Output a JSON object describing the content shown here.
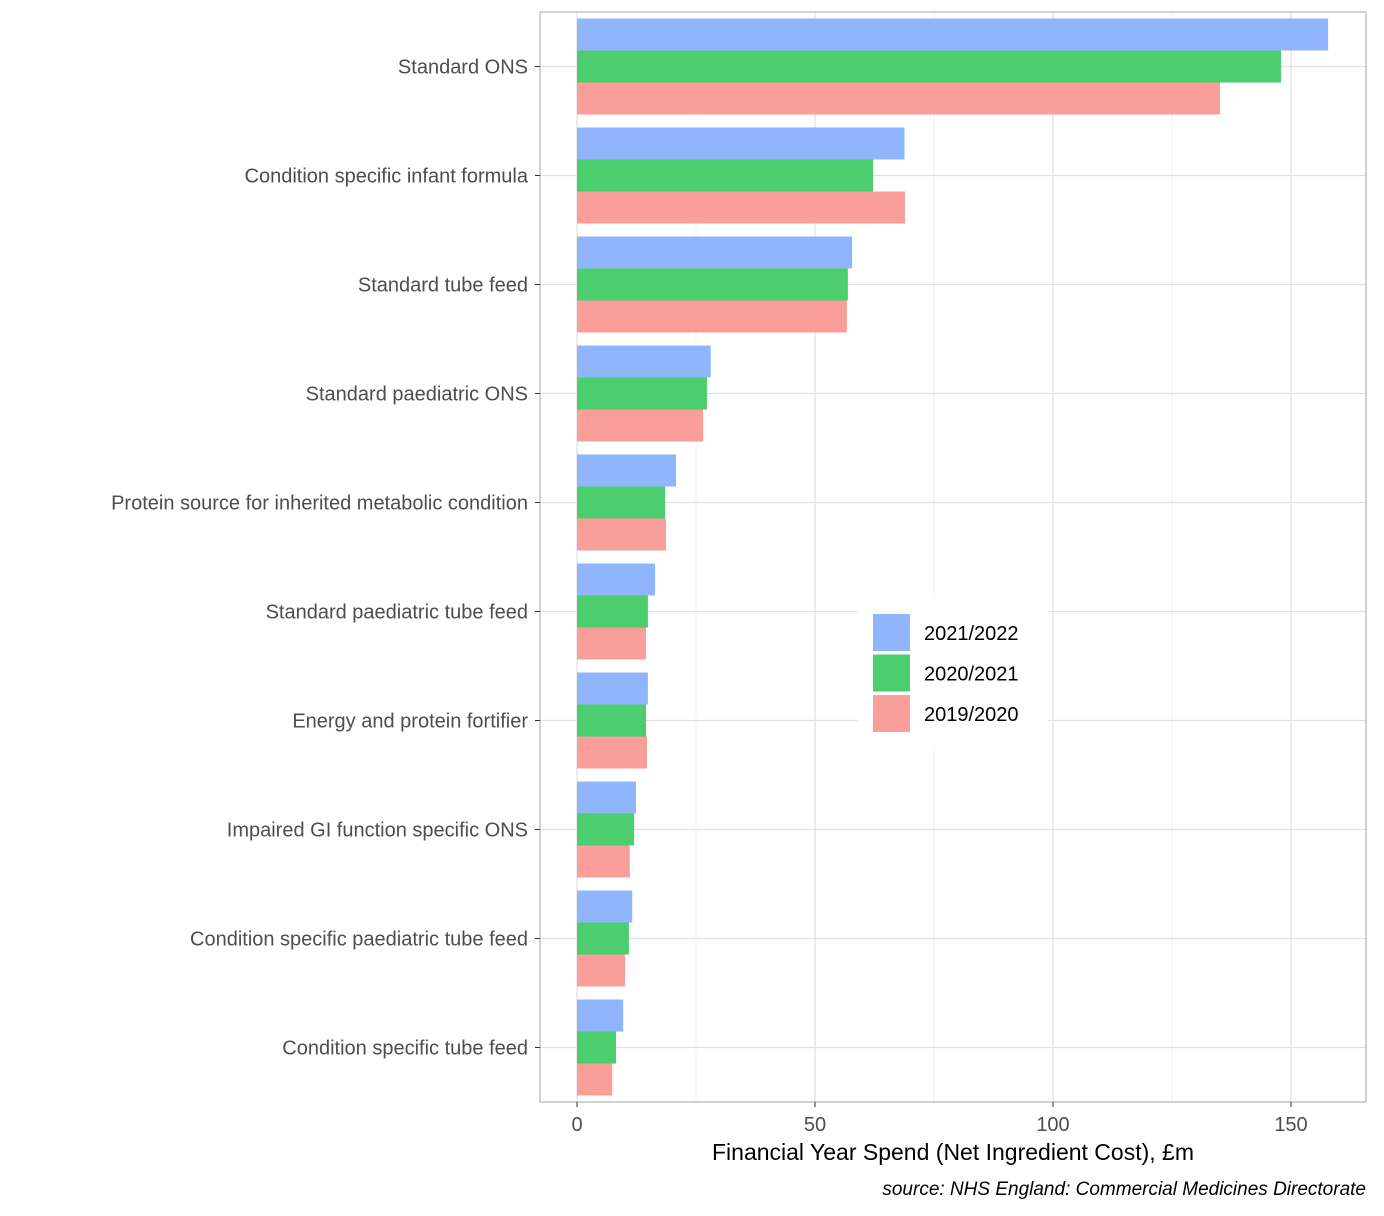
{
  "chart_data": {
    "type": "bar",
    "orientation": "horizontal",
    "title": "",
    "xlabel": "Financial Year Spend (Net Ingredient Cost), £m",
    "ylabel": "",
    "caption": "source: NHS England: Commercial Medicines Directorate",
    "xlim": [
      -8,
      166
    ],
    "xticks": [
      0,
      50,
      100,
      150
    ],
    "xtick_labels": [
      "0",
      "50",
      "100",
      "150"
    ],
    "grid": true,
    "legend_position": "inside-center-right",
    "categories": [
      "Standard ONS",
      "Condition specific infant formula",
      "Standard tube feed",
      "Standard paediatric ONS",
      "Protein source for inherited metabolic condition",
      "Standard paediatric tube feed",
      "Energy and protein fortifier",
      "Impaired GI function specific ONS",
      "Condition specific paediatric tube feed",
      "Condition specific tube feed"
    ],
    "series": [
      {
        "name": "2021/2022",
        "color": "#8fb6fc",
        "values": [
          157.8,
          68.8,
          57.8,
          28.1,
          20.8,
          16.4,
          14.9,
          12.4,
          11.6,
          9.7
        ]
      },
      {
        "name": "2020/2021",
        "color": "#4ccd6e",
        "values": [
          147.9,
          62.2,
          56.9,
          27.3,
          18.5,
          14.9,
          14.5,
          12.0,
          10.9,
          8.2
        ]
      },
      {
        "name": "2019/2020",
        "color": "#f99e99",
        "values": [
          135.1,
          68.9,
          56.7,
          26.5,
          18.7,
          14.5,
          14.7,
          11.1,
          10.1,
          7.4
        ]
      }
    ]
  }
}
